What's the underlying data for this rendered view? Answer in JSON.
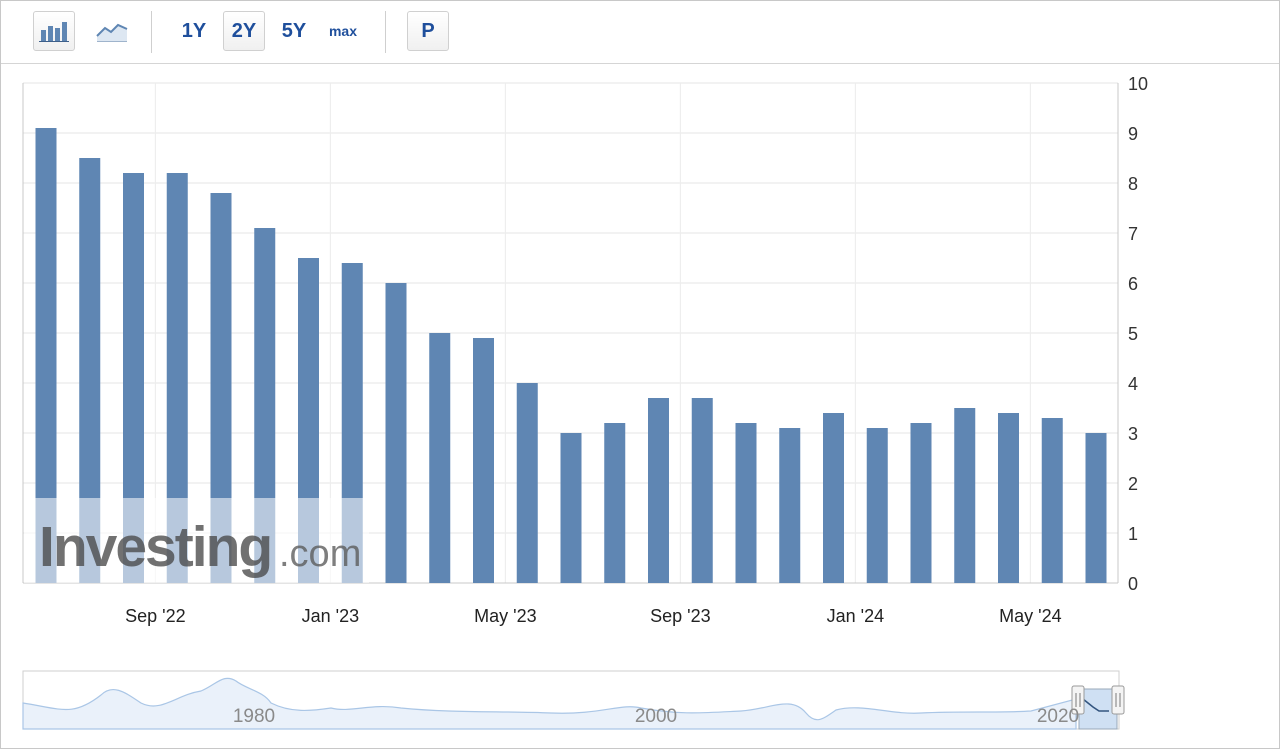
{
  "toolbar": {
    "bar_chart_icon": "bar-chart-icon",
    "line_chart_icon": "line-chart-icon",
    "ranges": [
      "1Y",
      "2Y",
      "5Y",
      "max"
    ],
    "active_range": "2Y",
    "p_label": "P"
  },
  "watermark": {
    "brand": "Investing",
    "suffix": ".com"
  },
  "colors": {
    "bar": "#5f86b3",
    "grid": "#e6e6e6",
    "axis": "#c8c8c8",
    "range_text": "#1f4f9c"
  },
  "chart_data": {
    "type": "bar",
    "values": [
      9.1,
      8.5,
      8.2,
      8.2,
      7.8,
      7.1,
      6.5,
      6.4,
      6.0,
      5.0,
      4.9,
      4.0,
      3.0,
      3.2,
      3.7,
      3.7,
      3.2,
      3.1,
      3.4,
      3.1,
      3.2,
      3.5,
      3.4,
      3.3,
      3.0
    ],
    "x_tick_labels": [
      "Sep '22",
      "Jan '23",
      "May '23",
      "Sep '23",
      "Jan '24",
      "May '24"
    ],
    "x_tick_bar_index": [
      2,
      6,
      10,
      14,
      18,
      22
    ],
    "y_ticks": [
      0,
      1,
      2,
      3,
      4,
      5,
      6,
      7,
      8,
      9,
      10
    ],
    "ylim": [
      0,
      10
    ],
    "y_axis_side": "right",
    "grid": true,
    "navigator": {
      "labels": [
        "1980",
        "2000",
        "2020"
      ]
    }
  }
}
